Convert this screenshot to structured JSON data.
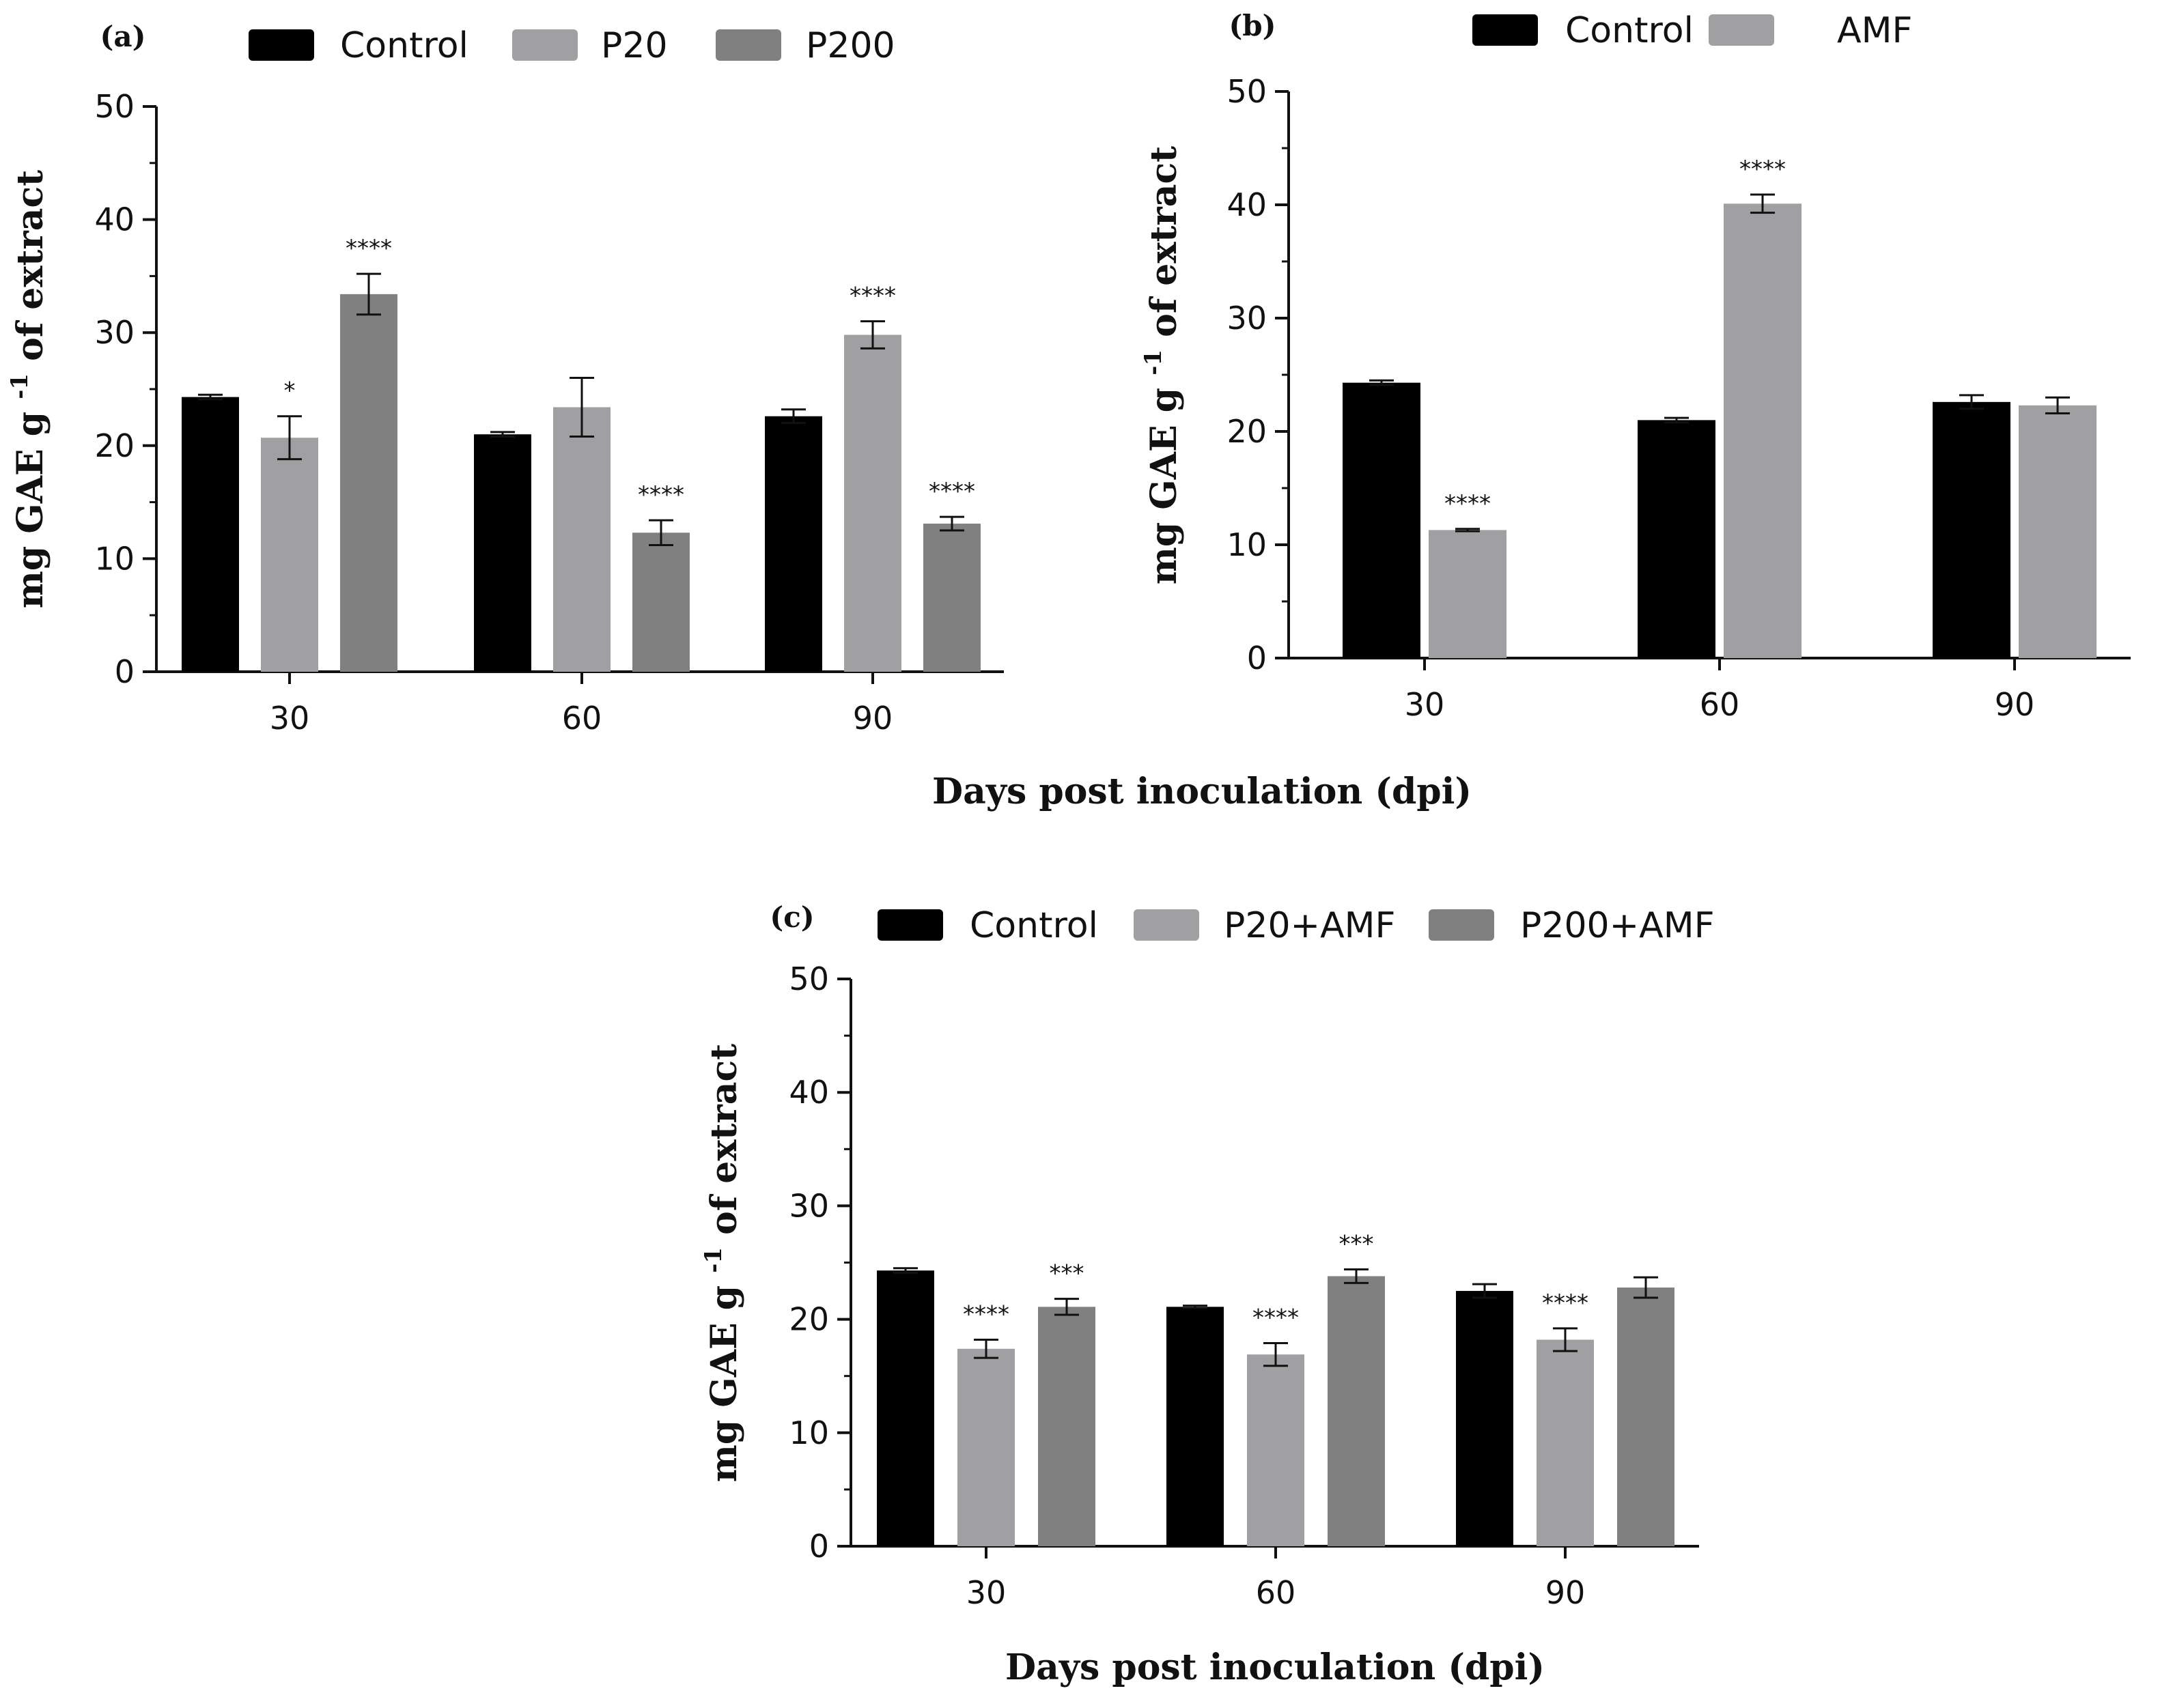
{
  "figure": {
    "shared_xlabel": "Days post inoculation (dpi)"
  },
  "chart_data": [
    {
      "type": "bar",
      "panel_label": "(a)",
      "categories": [
        "30",
        "60",
        "90"
      ],
      "ylabel": "mg GAE g",
      "ylabel_sup": "-1",
      "ylabel_tail": "of extract",
      "ylim": [
        0,
        50
      ],
      "yticks": [
        "0",
        "10",
        "20",
        "30",
        "40",
        "50"
      ],
      "xlabel": "Days post inoculation (dpi)",
      "legend_position": "top",
      "series": [
        {
          "name": "Control",
          "color": "#000000",
          "values": [
            24.3,
            21.0,
            22.6
          ],
          "errors": [
            0.2,
            0.2,
            0.6
          ],
          "sig": [
            "",
            "",
            ""
          ]
        },
        {
          "name": "P20",
          "color": "#a0a0a2",
          "values": [
            20.7,
            23.4,
            29.8
          ],
          "errors": [
            1.9,
            2.6,
            1.2
          ],
          "sig": [
            "*",
            "",
            "****"
          ]
        },
        {
          "name": "P200",
          "color": "#808080",
          "values": [
            33.4,
            12.3,
            13.1
          ],
          "errors": [
            1.8,
            1.1,
            0.6
          ],
          "sig": [
            "****",
            "****",
            "****"
          ]
        }
      ]
    },
    {
      "type": "bar",
      "panel_label": "(b)",
      "categories": [
        "30",
        "60",
        "90"
      ],
      "ylabel": "mg GAE g",
      "ylabel_sup": "-1",
      "ylabel_tail": "of extract",
      "ylim": [
        0,
        50
      ],
      "yticks": [
        "0",
        "10",
        "20",
        "30",
        "40",
        "50"
      ],
      "xlabel": "",
      "legend_position": "top",
      "series": [
        {
          "name": "Control",
          "color": "#000000",
          "values": [
            24.3,
            21.0,
            22.6
          ],
          "errors": [
            0.2,
            0.2,
            0.6
          ],
          "sig": [
            "",
            "",
            ""
          ]
        },
        {
          "name": "AMF",
          "color": "#a0a0a2",
          "values": [
            11.3,
            40.1,
            22.3
          ],
          "errors": [
            0.1,
            0.8,
            0.7
          ],
          "sig": [
            "****",
            "****",
            ""
          ]
        }
      ]
    },
    {
      "type": "bar",
      "panel_label": "(c)",
      "categories": [
        "30",
        "60",
        "90"
      ],
      "ylabel": "mg GAE g",
      "ylabel_sup": "-1",
      "ylabel_tail": "of extract",
      "ylim": [
        0,
        50
      ],
      "yticks": [
        "0",
        "10",
        "20",
        "30",
        "40",
        "50"
      ],
      "xlabel": "Days post inoculation (dpi)",
      "legend_position": "top",
      "series": [
        {
          "name": "Control",
          "color": "#000000",
          "values": [
            24.3,
            21.1,
            22.5
          ],
          "errors": [
            0.2,
            0.1,
            0.6
          ],
          "sig": [
            "",
            "",
            ""
          ]
        },
        {
          "name": "P20+AMF",
          "color": "#a0a0a2",
          "values": [
            17.4,
            16.9,
            18.2
          ],
          "errors": [
            0.8,
            1.0,
            1.0
          ],
          "sig": [
            "****",
            "****",
            "****"
          ]
        },
        {
          "name": "P200+AMF",
          "color": "#808080",
          "values": [
            21.1,
            23.8,
            22.8
          ],
          "errors": [
            0.7,
            0.6,
            0.9
          ],
          "sig": [
            "***",
            "***",
            ""
          ]
        }
      ]
    }
  ]
}
